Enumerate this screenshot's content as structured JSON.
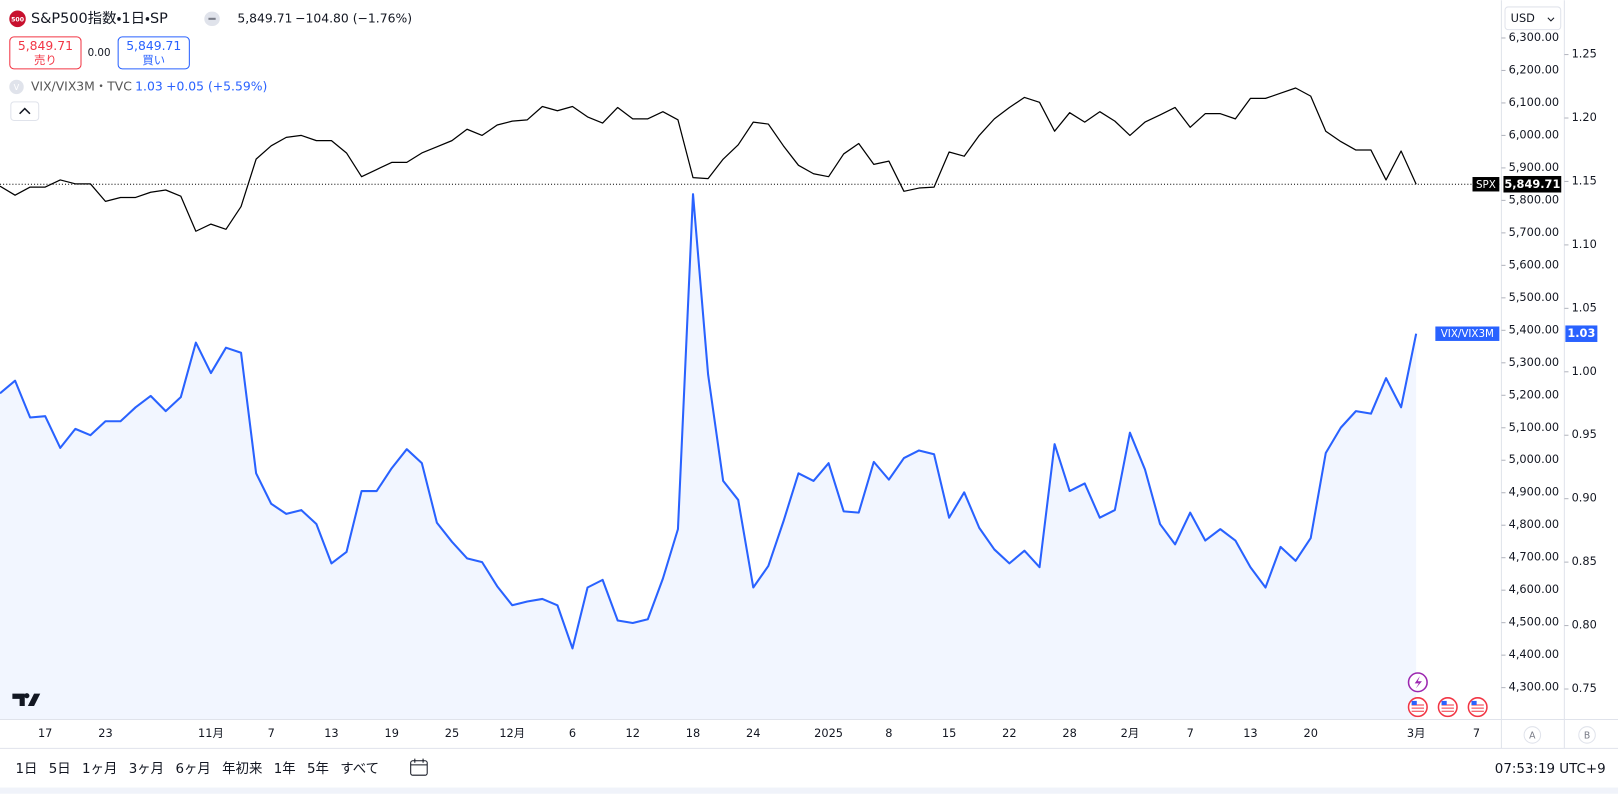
{
  "header": {
    "symbol": "S&P500指数・1日・SP",
    "badge": "500",
    "quote": "5,849.71",
    "change": "−104.80 (−1.76%)",
    "sell_price": "5,849.71",
    "sell_label": "売り",
    "spread": "0.00",
    "buy_price": "5,849.71",
    "buy_label": "買い",
    "compare_icon": "V",
    "compare_symbol": "VIX/VIX3M・TVC",
    "compare_change": "+0.05 (+5.59%)",
    "currency": "USD"
  },
  "toolbar": {
    "ranges": [
      "1日",
      "5日",
      "1ヶ月",
      "3ヶ月",
      "6ヶ月",
      "年初来",
      "1年",
      "5年",
      "すべて"
    ],
    "clock": "07:53:19 UTC+9",
    "scale_buttons": [
      "A",
      "B"
    ]
  },
  "chart_data": {
    "type": "line",
    "categories": [
      null,
      null,
      null,
      "17",
      null,
      null,
      null,
      "23",
      null,
      null,
      null,
      null,
      null,
      null,
      "11月",
      null,
      null,
      null,
      "7",
      null,
      null,
      null,
      "13",
      null,
      null,
      null,
      "19",
      null,
      null,
      null,
      "25",
      null,
      null,
      null,
      "12月",
      null,
      null,
      null,
      "6",
      null,
      null,
      null,
      "12",
      null,
      null,
      null,
      "18",
      null,
      null,
      null,
      "24",
      null,
      null,
      null,
      null,
      "2025",
      null,
      null,
      null,
      "8",
      null,
      null,
      null,
      "15",
      null,
      null,
      null,
      "22",
      null,
      null,
      null,
      "28",
      null,
      null,
      null,
      "2月",
      null,
      null,
      null,
      "7",
      null,
      null,
      null,
      "13",
      null,
      null,
      null,
      "20",
      null,
      null,
      null,
      null,
      null,
      null,
      "3月",
      null,
      null,
      null,
      "7"
    ],
    "series": [
      {
        "name": "SPX",
        "color": "#000000",
        "axis": "y",
        "area": false,
        "values": [
          5844,
          5816,
          5841,
          5841,
          5863,
          5851,
          5851,
          5797,
          5809,
          5809,
          5825,
          5832,
          5813,
          5705,
          5727,
          5711,
          5781,
          5927,
          5968,
          5994,
          6000,
          5984,
          5984,
          5946,
          5873,
          5895,
          5917,
          5917,
          5946,
          5965,
          5984,
          6019,
          6000,
          6032,
          6044,
          6048,
          6089,
          6076,
          6089,
          6057,
          6038,
          6086,
          6051,
          6051,
          6073,
          6048,
          5870,
          5867,
          5927,
          5971,
          6041,
          6035,
          5968,
          5908,
          5882,
          5873,
          5943,
          5975,
          5911,
          5921,
          5828,
          5838,
          5841,
          5949,
          5936,
          6000,
          6051,
          6086,
          6117,
          6102,
          6013,
          6070,
          6041,
          6073,
          6044,
          6000,
          6041,
          6063,
          6086,
          6025,
          6067,
          6067,
          6051,
          6114,
          6114,
          6130,
          6146,
          6121,
          6013,
          5981,
          5955,
          5955,
          5863,
          5952,
          5849.71,
          null,
          null,
          null,
          null
        ],
        "value_labels": [
          null,
          null,
          null,
          null,
          null,
          null,
          null,
          null,
          null,
          null,
          null,
          null,
          null,
          null,
          null,
          null,
          null,
          null,
          null,
          null,
          null,
          null,
          null,
          null,
          null,
          null,
          null,
          null,
          null,
          null,
          null,
          null,
          null,
          null,
          null,
          null,
          null,
          null,
          null,
          null,
          null,
          null,
          null,
          null,
          null,
          null,
          null,
          null,
          null,
          null,
          null,
          null,
          null,
          null,
          null,
          null,
          null,
          null,
          null,
          null,
          null,
          null,
          null,
          null,
          null,
          null,
          null,
          null,
          null,
          null,
          null,
          null,
          null,
          null,
          null,
          null,
          null,
          null,
          null,
          null,
          null,
          null,
          null,
          null,
          null,
          null,
          null,
          null,
          null,
          null,
          null,
          null,
          null,
          null,
          "5,849.71",
          null,
          null,
          null,
          null
        ]
      },
      {
        "name": "VIX/VIX3M",
        "color": "#2962ff",
        "axis": "y2",
        "area": true,
        "values": [
          0.983,
          0.993,
          0.964,
          0.965,
          0.94,
          0.955,
          0.95,
          0.961,
          0.961,
          0.972,
          0.981,
          0.969,
          0.98,
          1.023,
          0.999,
          1.019,
          1.015,
          0.92,
          0.896,
          0.888,
          0.891,
          0.88,
          0.849,
          0.858,
          0.906,
          0.906,
          0.924,
          0.939,
          0.928,
          0.881,
          0.866,
          0.853,
          0.85,
          0.831,
          0.816,
          0.819,
          0.821,
          0.816,
          0.782,
          0.83,
          0.836,
          0.804,
          0.802,
          0.805,
          0.837,
          0.876,
          1.14,
          0.998,
          0.914,
          0.899,
          0.83,
          0.847,
          0.882,
          0.92,
          0.914,
          0.928,
          0.89,
          0.889,
          0.929,
          0.915,
          0.932,
          0.938,
          0.935,
          0.885,
          0.905,
          0.877,
          0.86,
          0.849,
          0.859,
          0.846,
          0.943,
          0.906,
          0.912,
          0.885,
          0.891,
          0.952,
          0.923,
          0.88,
          0.864,
          0.889,
          0.867,
          0.876,
          0.867,
          0.846,
          0.83,
          0.862,
          0.851,
          0.869,
          0.936,
          0.956,
          0.969,
          0.967,
          0.995,
          0.972,
          1.03,
          null,
          null,
          null,
          null
        ]
      }
    ],
    "ylim": [
      4202,
      6413
    ],
    "yticks": [
      {
        "value": 4300,
        "label": "4,300.00"
      },
      {
        "value": 4400,
        "label": "4,400.00"
      },
      {
        "value": 4500,
        "label": "4,500.00"
      },
      {
        "value": 4600,
        "label": "4,600.00"
      },
      {
        "value": 4700,
        "label": "4,700.00"
      },
      {
        "value": 4800,
        "label": "4,800.00"
      },
      {
        "value": 4900,
        "label": "4,900.00"
      },
      {
        "value": 5000,
        "label": "5,000.00"
      },
      {
        "value": 5100,
        "label": "5,100.00"
      },
      {
        "value": 5200,
        "label": "5,200.00"
      },
      {
        "value": 5300,
        "label": "5,300.00"
      },
      {
        "value": 5400,
        "label": "5,400.00"
      },
      {
        "value": 5500,
        "label": "5,500.00"
      },
      {
        "value": 5600,
        "label": "5,600.00"
      },
      {
        "value": 5700,
        "label": "5,700.00"
      },
      {
        "value": 5800,
        "label": "5,800.00"
      },
      {
        "value": 5900,
        "label": "5,900.00"
      },
      {
        "value": 6000,
        "label": "6,000.00"
      },
      {
        "value": 6100,
        "label": "6,100.00"
      },
      {
        "value": 6200,
        "label": "6,200.00"
      },
      {
        "value": 6300,
        "label": "6,300.00"
      }
    ],
    "y2lim": [
      0.726,
      1.292
    ],
    "y2ticks": [
      0.75,
      {
        "value": 0.8,
        "label": "0.80"
      },
      0.85,
      {
        "value": 0.9,
        "label": "0.90"
      },
      0.95,
      {
        "value": 1,
        "label": "1.00"
      },
      1.05,
      {
        "value": 1.1,
        "label": "1.10"
      },
      1.15,
      {
        "value": 1.2,
        "label": "1.20"
      },
      1.25
    ],
    "grid": false,
    "price_line": true
  }
}
